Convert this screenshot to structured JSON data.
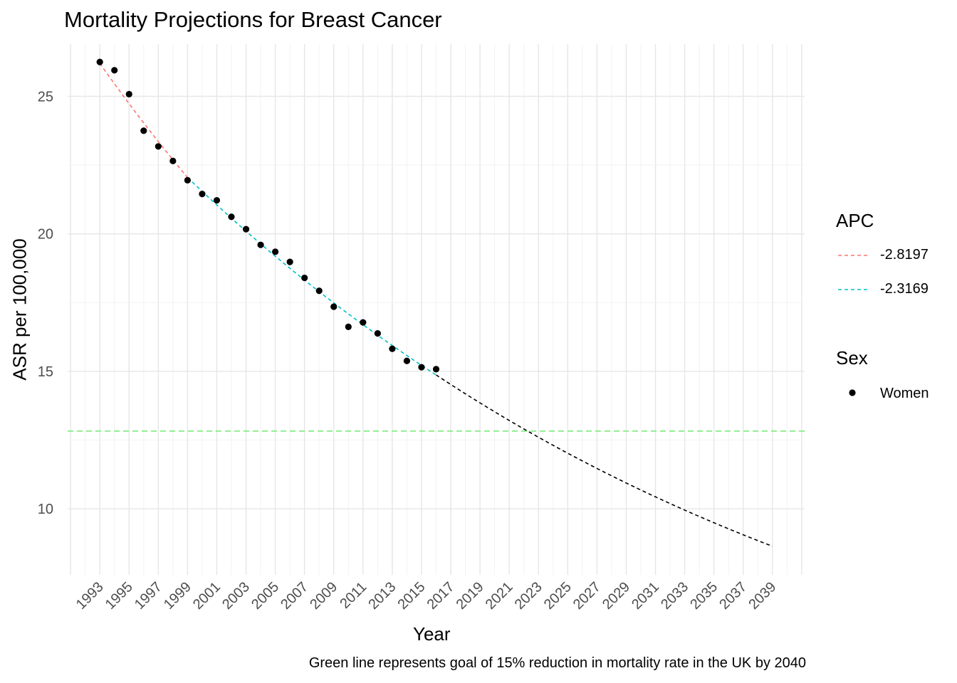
{
  "chart_data": {
    "type": "line",
    "title": "Mortality Projections for Breast Cancer",
    "xlabel": "Year",
    "ylabel": "ASR per 100,000",
    "caption": "Green line represents goal of 15% reduction in mortality rate in the UK by 2040",
    "xlim": [
      1990.8,
      2041.2
    ],
    "ylim": [
      7.6,
      26.9
    ],
    "x_ticks": [
      "1993",
      "1995",
      "1997",
      "1999",
      "2001",
      "2003",
      "2005",
      "2007",
      "2009",
      "2011",
      "2013",
      "2015",
      "2017",
      "2019",
      "2021",
      "2023",
      "2025",
      "2027",
      "2029",
      "2031",
      "2033",
      "2035",
      "2037",
      "2039"
    ],
    "y_ticks": [
      10,
      15,
      20,
      25
    ],
    "grid": true,
    "legend_position": "right",
    "legend": {
      "apc_title": "APC",
      "apc_items": [
        {
          "label": "-2.8197",
          "color": "#F8766D"
        },
        {
          "label": "-2.3169",
          "color": "#00BFC4"
        }
      ],
      "sex_title": "Sex",
      "sex_items": [
        {
          "label": "Women",
          "color": "#000000"
        }
      ]
    },
    "points": {
      "x": [
        1993,
        1994,
        1995,
        1996,
        1997,
        1998,
        1999,
        2000,
        2001,
        2002,
        2003,
        2004,
        2005,
        2006,
        2007,
        2008,
        2009,
        2010,
        2011,
        2012,
        2013,
        2014,
        2015,
        2016
      ],
      "y": [
        26.25,
        25.95,
        25.08,
        23.75,
        23.18,
        22.65,
        21.95,
        21.45,
        21.22,
        20.62,
        20.17,
        19.6,
        19.35,
        18.98,
        18.4,
        17.93,
        17.35,
        16.62,
        16.78,
        16.38,
        15.82,
        15.38,
        15.15,
        15.08
      ]
    },
    "segment1_fit": {
      "color": "#F8766D",
      "x": [
        1993,
        1999
      ],
      "y": [
        26.2,
        22.05
      ]
    },
    "segment2_fit": {
      "color": "#00BFC4",
      "x": [
        1999,
        2016
      ],
      "y": [
        22.05,
        14.87
      ]
    },
    "projection": {
      "color": "#000000",
      "x": [
        2016,
        2039
      ],
      "y": [
        14.87,
        8.64
      ]
    },
    "goal_line": {
      "color": "#90EE90",
      "y": 12.83
    }
  }
}
